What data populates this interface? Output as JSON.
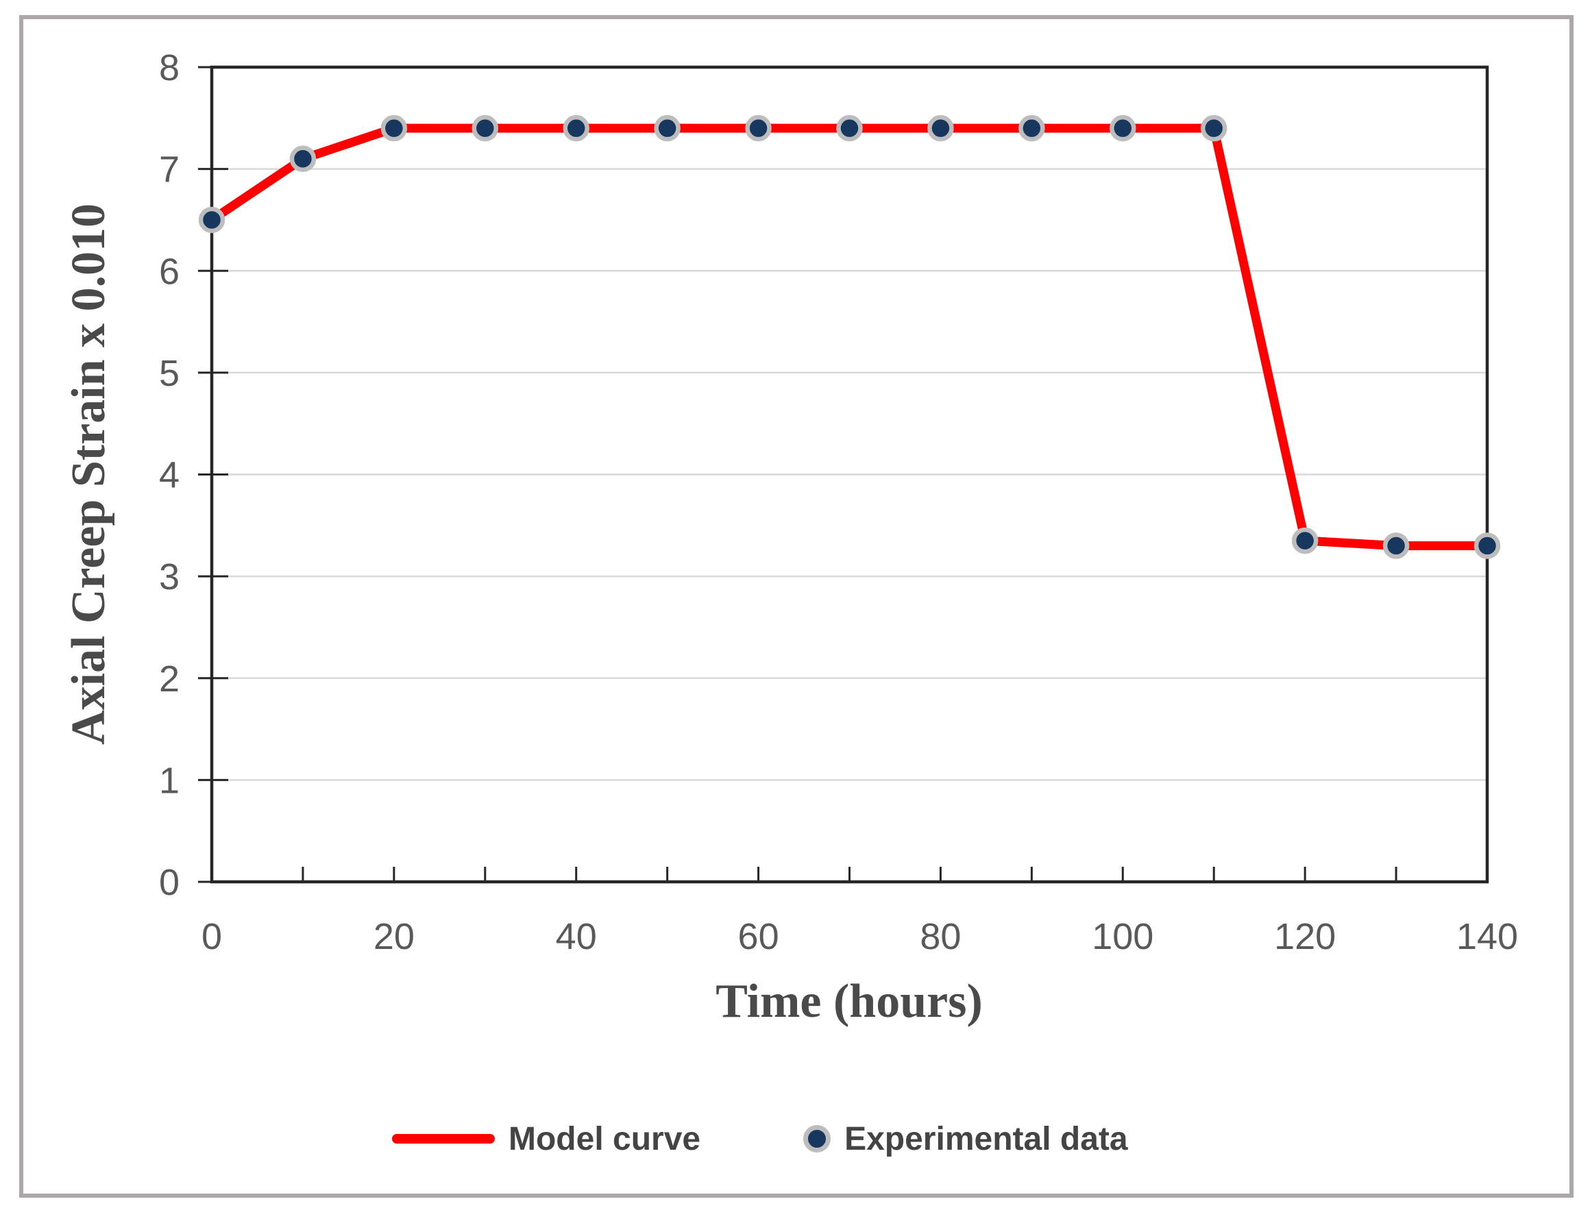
{
  "figure": {
    "frame_color": "#ACA8A7",
    "background": "#FFFFFF"
  },
  "chart_data": {
    "type": "line",
    "title": "",
    "xlabel": "Time (hours)",
    "ylabel": "Axial Creep Strain x 0.010",
    "xlim": [
      0,
      140
    ],
    "ylim": [
      0,
      8
    ],
    "xticks": [
      0,
      10,
      20,
      30,
      40,
      50,
      60,
      70,
      80,
      90,
      100,
      110,
      120,
      130,
      140
    ],
    "xtick_labels": [
      0,
      20,
      40,
      60,
      80,
      100,
      120,
      140
    ],
    "yticks": [
      0,
      1,
      2,
      3,
      4,
      5,
      6,
      7,
      8
    ],
    "grid": "horizontal-only",
    "legend_position": "bottom-center",
    "x": [
      0,
      10,
      20,
      30,
      40,
      50,
      60,
      70,
      80,
      90,
      100,
      110,
      120,
      130,
      140
    ],
    "series": [
      {
        "name": "Model curve",
        "type": "line",
        "color": "#FF0000",
        "values": [
          6.5,
          7.1,
          7.4,
          7.4,
          7.4,
          7.4,
          7.4,
          7.4,
          7.4,
          7.4,
          7.4,
          7.4,
          3.35,
          3.3,
          3.3
        ]
      },
      {
        "name": "Experimental data",
        "type": "scatter",
        "marker_color": "#17375E",
        "marker_ring_color": "#BDBDBD",
        "values": [
          6.5,
          7.1,
          7.4,
          7.4,
          7.4,
          7.4,
          7.4,
          7.4,
          7.4,
          7.4,
          7.4,
          7.4,
          3.35,
          3.3,
          3.3
        ]
      }
    ],
    "colors": {
      "axis_line": "#262626",
      "gridline": "#D9D9D9",
      "tick_label": "#595959",
      "axis_title": "#4A4A4A",
      "legend_text": "#444444"
    }
  }
}
